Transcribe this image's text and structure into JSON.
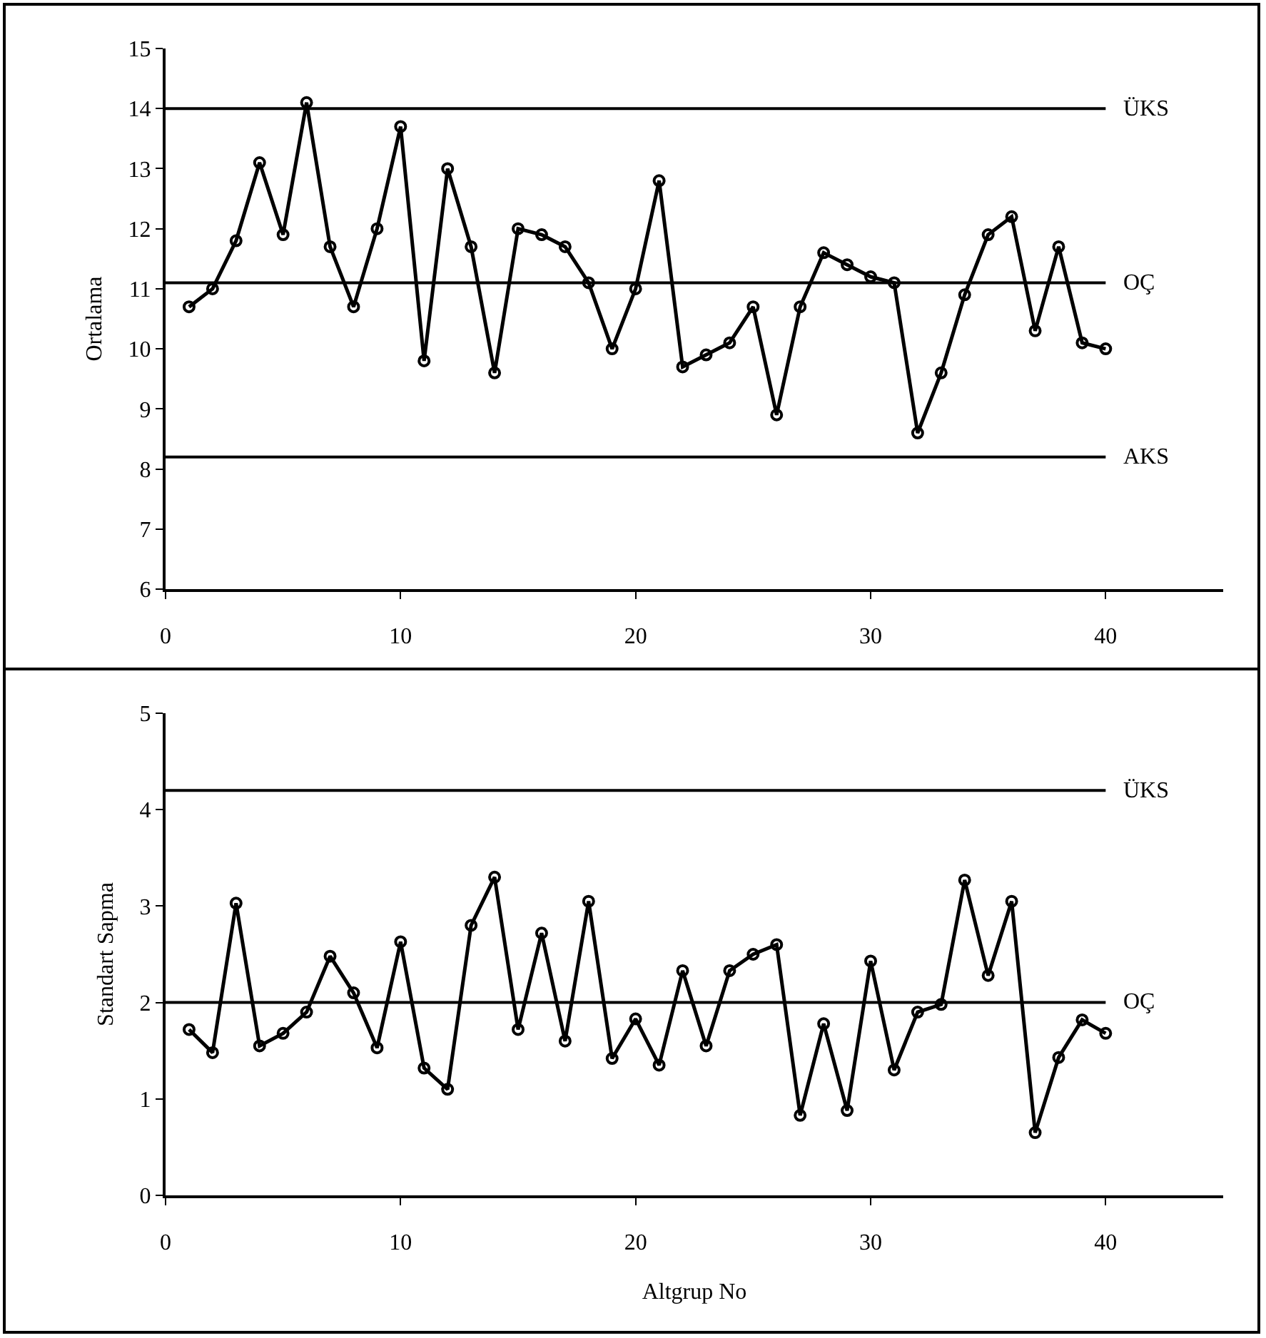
{
  "chart_data": [
    {
      "type": "line",
      "ylabel": "Ortalama",
      "x": [
        1,
        2,
        3,
        4,
        5,
        6,
        7,
        8,
        9,
        10,
        11,
        12,
        13,
        14,
        15,
        16,
        17,
        18,
        19,
        20,
        21,
        22,
        23,
        24,
        25,
        26,
        27,
        28,
        29,
        30,
        31,
        32,
        33,
        34,
        35,
        36,
        37,
        38,
        39,
        40
      ],
      "series": [
        {
          "color": "#000000",
          "values": [
            10.7,
            11.0,
            11.8,
            13.1,
            11.9,
            14.1,
            11.7,
            10.7,
            12.0,
            13.7,
            9.8,
            13.0,
            11.7,
            9.6,
            12.0,
            11.9,
            11.7,
            11.1,
            10.0,
            11.0,
            12.8,
            9.7,
            9.9,
            10.1,
            10.7,
            8.9,
            10.7,
            11.6,
            11.4,
            11.2,
            11.1,
            8.6,
            9.6,
            10.9,
            11.9,
            12.2,
            10.3,
            11.7,
            10.1,
            10.0
          ]
        }
      ],
      "xlim": [
        0,
        45
      ],
      "xticks": [
        0,
        10,
        20,
        30,
        40
      ],
      "ylim": [
        6,
        15
      ],
      "yticks": [
        6,
        7,
        8,
        9,
        10,
        11,
        12,
        13,
        14,
        15
      ],
      "ref_lines": [
        {
          "axis": "y",
          "value": 14.0,
          "label": "ÜKS",
          "color": "#000000"
        },
        {
          "axis": "y",
          "value": 11.1,
          "label": "OÇ",
          "color": "#000000"
        },
        {
          "axis": "y",
          "value": 8.2,
          "label": "AKS",
          "color": "#000000"
        }
      ],
      "marker": "circle",
      "line_style": "solid"
    },
    {
      "type": "line",
      "xlabel": "Altgrup No",
      "ylabel": "Standart Sapma",
      "x": [
        1,
        2,
        3,
        4,
        5,
        6,
        7,
        8,
        9,
        10,
        11,
        12,
        13,
        14,
        15,
        16,
        17,
        18,
        19,
        20,
        21,
        22,
        23,
        24,
        25,
        26,
        27,
        28,
        29,
        30,
        31,
        32,
        33,
        34,
        35,
        36,
        37,
        38,
        39,
        40
      ],
      "series": [
        {
          "color": "#000000",
          "values": [
            1.72,
            1.48,
            3.03,
            1.55,
            1.68,
            1.9,
            2.48,
            2.1,
            1.53,
            2.63,
            1.32,
            1.1,
            2.8,
            3.3,
            1.72,
            2.72,
            1.6,
            3.05,
            1.42,
            1.83,
            1.35,
            2.33,
            1.55,
            2.33,
            2.5,
            2.6,
            0.83,
            1.78,
            0.88,
            2.43,
            1.3,
            1.9,
            1.98,
            3.27,
            2.28,
            3.05,
            0.65,
            1.43,
            1.82,
            1.68
          ]
        }
      ],
      "xlim": [
        0,
        45
      ],
      "xticks": [
        0,
        10,
        20,
        30,
        40
      ],
      "ylim": [
        0,
        5
      ],
      "yticks": [
        0,
        1,
        2,
        3,
        4,
        5
      ],
      "ref_lines": [
        {
          "axis": "y",
          "value": 4.2,
          "label": "ÜKS",
          "color": "#000000"
        },
        {
          "axis": "y",
          "value": 2.0,
          "label": "OÇ",
          "color": "#000000"
        }
      ],
      "marker": "circle",
      "line_style": "solid"
    }
  ]
}
